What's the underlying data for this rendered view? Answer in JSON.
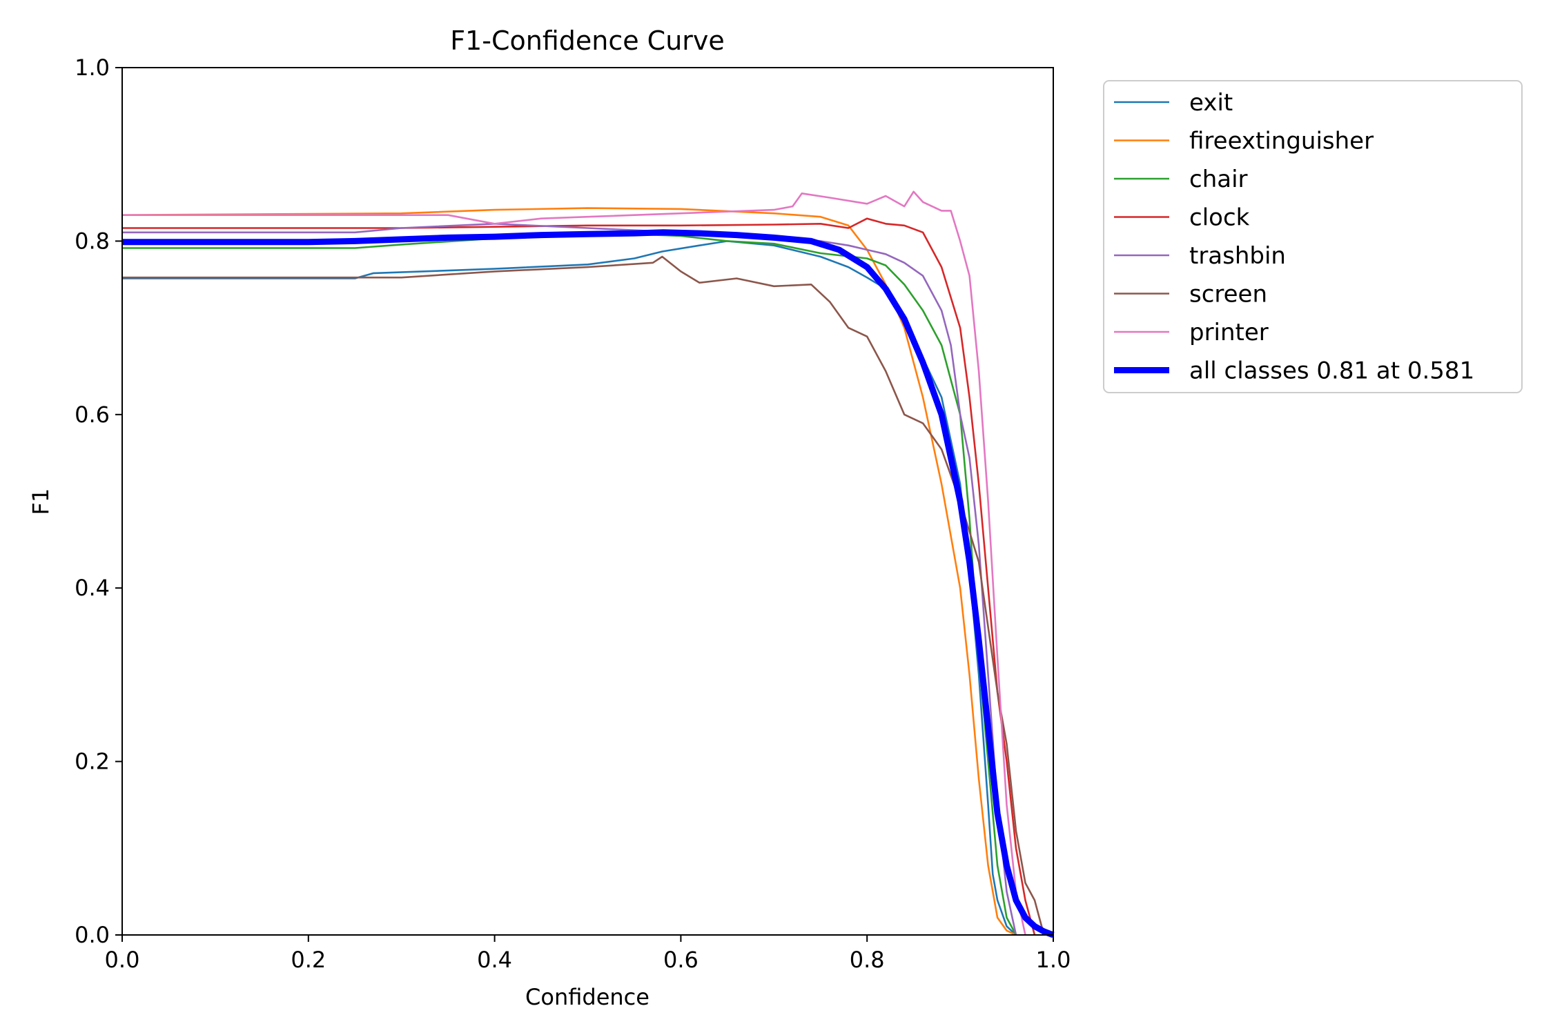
{
  "chart_data": {
    "type": "line",
    "title": "F1-Confidence Curve",
    "xlabel": "Confidence",
    "ylabel": "F1",
    "xlim": [
      0.0,
      1.0
    ],
    "ylim": [
      0.0,
      1.0
    ],
    "xticks": [
      "0.0",
      "0.2",
      "0.4",
      "0.6",
      "0.8",
      "1.0"
    ],
    "yticks": [
      "0.0",
      "0.2",
      "0.4",
      "0.6",
      "0.8",
      "1.0"
    ],
    "grid": false,
    "legend_position": "outside-top-right",
    "series": [
      {
        "name": "exit",
        "color": "#1f77b4",
        "bold": false,
        "points": [
          [
            0,
            0.757
          ],
          [
            0.25,
            0.757
          ],
          [
            0.27,
            0.763
          ],
          [
            0.35,
            0.766
          ],
          [
            0.4,
            0.768
          ],
          [
            0.5,
            0.773
          ],
          [
            0.55,
            0.78
          ],
          [
            0.58,
            0.788
          ],
          [
            0.62,
            0.795
          ],
          [
            0.65,
            0.8
          ],
          [
            0.7,
            0.795
          ],
          [
            0.75,
            0.782
          ],
          [
            0.78,
            0.77
          ],
          [
            0.8,
            0.758
          ],
          [
            0.82,
            0.745
          ],
          [
            0.84,
            0.71
          ],
          [
            0.86,
            0.665
          ],
          [
            0.88,
            0.62
          ],
          [
            0.9,
            0.52
          ],
          [
            0.91,
            0.42
          ],
          [
            0.92,
            0.3
          ],
          [
            0.93,
            0.15
          ],
          [
            0.935,
            0.07
          ],
          [
            0.94,
            0.04
          ],
          [
            0.95,
            0.01
          ],
          [
            0.96,
            0
          ]
        ]
      },
      {
        "name": "fireextinguisher",
        "color": "#ff7f0e",
        "bold": false,
        "points": [
          [
            0,
            0.83
          ],
          [
            0.3,
            0.832
          ],
          [
            0.4,
            0.836
          ],
          [
            0.5,
            0.838
          ],
          [
            0.6,
            0.837
          ],
          [
            0.7,
            0.832
          ],
          [
            0.75,
            0.828
          ],
          [
            0.78,
            0.818
          ],
          [
            0.8,
            0.79
          ],
          [
            0.82,
            0.75
          ],
          [
            0.84,
            0.7
          ],
          [
            0.86,
            0.62
          ],
          [
            0.88,
            0.52
          ],
          [
            0.9,
            0.4
          ],
          [
            0.91,
            0.3
          ],
          [
            0.92,
            0.18
          ],
          [
            0.93,
            0.08
          ],
          [
            0.94,
            0.02
          ],
          [
            0.95,
            0.005
          ],
          [
            0.96,
            0
          ]
        ]
      },
      {
        "name": "chair",
        "color": "#2ca02c",
        "bold": false,
        "points": [
          [
            0,
            0.792
          ],
          [
            0.25,
            0.792
          ],
          [
            0.3,
            0.796
          ],
          [
            0.4,
            0.803
          ],
          [
            0.5,
            0.81
          ],
          [
            0.6,
            0.806
          ],
          [
            0.65,
            0.8
          ],
          [
            0.7,
            0.797
          ],
          [
            0.75,
            0.786
          ],
          [
            0.8,
            0.78
          ],
          [
            0.82,
            0.772
          ],
          [
            0.84,
            0.75
          ],
          [
            0.86,
            0.72
          ],
          [
            0.88,
            0.68
          ],
          [
            0.9,
            0.6
          ],
          [
            0.91,
            0.48
          ],
          [
            0.92,
            0.32
          ],
          [
            0.93,
            0.2
          ],
          [
            0.94,
            0.08
          ],
          [
            0.95,
            0.02
          ],
          [
            0.96,
            0
          ]
        ]
      },
      {
        "name": "clock",
        "color": "#d62728",
        "bold": false,
        "points": [
          [
            0,
            0.815
          ],
          [
            0.3,
            0.815
          ],
          [
            0.5,
            0.818
          ],
          [
            0.6,
            0.818
          ],
          [
            0.7,
            0.819
          ],
          [
            0.75,
            0.82
          ],
          [
            0.78,
            0.815
          ],
          [
            0.8,
            0.826
          ],
          [
            0.82,
            0.82
          ],
          [
            0.84,
            0.818
          ],
          [
            0.86,
            0.81
          ],
          [
            0.88,
            0.77
          ],
          [
            0.9,
            0.7
          ],
          [
            0.91,
            0.62
          ],
          [
            0.92,
            0.52
          ],
          [
            0.93,
            0.4
          ],
          [
            0.94,
            0.28
          ],
          [
            0.95,
            0.2
          ],
          [
            0.96,
            0.1
          ],
          [
            0.97,
            0.04
          ],
          [
            0.98,
            0
          ]
        ]
      },
      {
        "name": "trashbin",
        "color": "#9467bd",
        "bold": false,
        "points": [
          [
            0,
            0.81
          ],
          [
            0.25,
            0.81
          ],
          [
            0.3,
            0.815
          ],
          [
            0.4,
            0.82
          ],
          [
            0.5,
            0.815
          ],
          [
            0.6,
            0.81
          ],
          [
            0.7,
            0.805
          ],
          [
            0.75,
            0.8
          ],
          [
            0.78,
            0.795
          ],
          [
            0.8,
            0.79
          ],
          [
            0.82,
            0.785
          ],
          [
            0.84,
            0.775
          ],
          [
            0.86,
            0.76
          ],
          [
            0.88,
            0.72
          ],
          [
            0.89,
            0.68
          ],
          [
            0.9,
            0.6
          ],
          [
            0.91,
            0.55
          ],
          [
            0.92,
            0.45
          ],
          [
            0.93,
            0.3
          ],
          [
            0.94,
            0.15
          ],
          [
            0.95,
            0.05
          ],
          [
            0.96,
            0
          ]
        ]
      },
      {
        "name": "screen",
        "color": "#8c564b",
        "bold": false,
        "points": [
          [
            0,
            0.758
          ],
          [
            0.3,
            0.758
          ],
          [
            0.4,
            0.765
          ],
          [
            0.5,
            0.77
          ],
          [
            0.57,
            0.775
          ],
          [
            0.58,
            0.782
          ],
          [
            0.6,
            0.765
          ],
          [
            0.62,
            0.752
          ],
          [
            0.66,
            0.757
          ],
          [
            0.7,
            0.748
          ],
          [
            0.74,
            0.75
          ],
          [
            0.76,
            0.73
          ],
          [
            0.78,
            0.7
          ],
          [
            0.8,
            0.69
          ],
          [
            0.82,
            0.65
          ],
          [
            0.84,
            0.6
          ],
          [
            0.86,
            0.59
          ],
          [
            0.88,
            0.56
          ],
          [
            0.9,
            0.5
          ],
          [
            0.92,
            0.43
          ],
          [
            0.94,
            0.28
          ],
          [
            0.95,
            0.22
          ],
          [
            0.96,
            0.12
          ],
          [
            0.97,
            0.06
          ],
          [
            0.98,
            0.04
          ],
          [
            0.99,
            0
          ]
        ]
      },
      {
        "name": "printer",
        "color": "#e377c2",
        "bold": false,
        "points": [
          [
            0,
            0.83
          ],
          [
            0.3,
            0.83
          ],
          [
            0.35,
            0.83
          ],
          [
            0.4,
            0.82
          ],
          [
            0.45,
            0.826
          ],
          [
            0.5,
            0.828
          ],
          [
            0.6,
            0.832
          ],
          [
            0.7,
            0.836
          ],
          [
            0.72,
            0.84
          ],
          [
            0.73,
            0.855
          ],
          [
            0.76,
            0.85
          ],
          [
            0.8,
            0.843
          ],
          [
            0.82,
            0.852
          ],
          [
            0.84,
            0.84
          ],
          [
            0.85,
            0.857
          ],
          [
            0.86,
            0.845
          ],
          [
            0.88,
            0.835
          ],
          [
            0.89,
            0.835
          ],
          [
            0.9,
            0.8
          ],
          [
            0.91,
            0.76
          ],
          [
            0.92,
            0.65
          ],
          [
            0.93,
            0.5
          ],
          [
            0.94,
            0.32
          ],
          [
            0.95,
            0.15
          ],
          [
            0.96,
            0.05
          ],
          [
            0.97,
            0
          ]
        ]
      },
      {
        "name": "all classes 0.81 at 0.581",
        "color": "#0000ff",
        "bold": true,
        "points": [
          [
            0,
            0.799
          ],
          [
            0.2,
            0.799
          ],
          [
            0.25,
            0.8
          ],
          [
            0.3,
            0.802
          ],
          [
            0.35,
            0.804
          ],
          [
            0.4,
            0.805
          ],
          [
            0.45,
            0.807
          ],
          [
            0.5,
            0.808
          ],
          [
            0.55,
            0.809
          ],
          [
            0.581,
            0.81
          ],
          [
            0.62,
            0.809
          ],
          [
            0.66,
            0.807
          ],
          [
            0.7,
            0.804
          ],
          [
            0.74,
            0.8
          ],
          [
            0.77,
            0.79
          ],
          [
            0.8,
            0.77
          ],
          [
            0.82,
            0.745
          ],
          [
            0.84,
            0.71
          ],
          [
            0.86,
            0.66
          ],
          [
            0.88,
            0.6
          ],
          [
            0.9,
            0.5
          ],
          [
            0.91,
            0.43
          ],
          [
            0.92,
            0.34
          ],
          [
            0.93,
            0.24
          ],
          [
            0.94,
            0.14
          ],
          [
            0.95,
            0.08
          ],
          [
            0.96,
            0.04
          ],
          [
            0.97,
            0.02
          ],
          [
            0.98,
            0.01
          ],
          [
            0.99,
            0.004
          ],
          [
            1.0,
            0
          ]
        ]
      }
    ]
  }
}
